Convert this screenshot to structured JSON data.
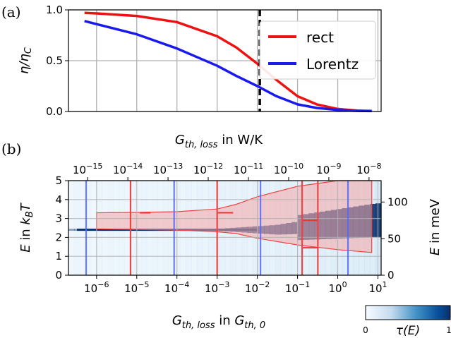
{
  "chart_data": [
    {
      "panel_label": "(a)",
      "type": "line",
      "ylabel": "η/η_C",
      "yticks": [
        "0.0",
        "0.5",
        "1.0"
      ],
      "ylim": [
        0,
        1
      ],
      "x_scale": "log",
      "x_unit": "G_th,loss in G_th,0",
      "xlim": [
        2e-07,
        12
      ],
      "grid": true,
      "legend": "top-right",
      "vline": {
        "x": 0.0115,
        "style": "dashed",
        "color": "#000000"
      },
      "series": [
        {
          "name": "rect",
          "color": "#ee1111",
          "x": [
            5e-07,
            1e-06,
            1e-05,
            0.0001,
            0.001,
            0.003,
            0.01,
            0.03,
            0.1,
            0.3,
            1,
            3,
            7
          ],
          "y": [
            0.97,
            0.965,
            0.94,
            0.88,
            0.74,
            0.63,
            0.47,
            0.31,
            0.15,
            0.07,
            0.025,
            0.008,
            0.005
          ]
        },
        {
          "name": "Lorentz",
          "color": "#1a1aee",
          "x": [
            5e-07,
            1e-06,
            1e-05,
            0.0001,
            0.001,
            0.003,
            0.01,
            0.03,
            0.1,
            0.3,
            1,
            3,
            7
          ],
          "y": [
            0.89,
            0.86,
            0.76,
            0.62,
            0.45,
            0.35,
            0.25,
            0.15,
            0.07,
            0.035,
            0.015,
            0.006,
            0.004
          ]
        }
      ]
    },
    {
      "panel_label": "(b)",
      "type": "heatmap",
      "xlabel": "G_th,loss in G_th,0",
      "x_top_label": "G_th,loss in W/K",
      "ylabel": "E in k_B T",
      "y_right_label": "E in meV",
      "x_scale": "log",
      "xlim": [
        2e-07,
        12
      ],
      "ylim": [
        0,
        5
      ],
      "xticks": [
        {
          "v": 1e-06,
          "e": "-6"
        },
        {
          "v": 1e-05,
          "e": "-5"
        },
        {
          "v": 0.0001,
          "e": "-4"
        },
        {
          "v": 0.001,
          "e": "-3"
        },
        {
          "v": 0.01,
          "e": "-2"
        },
        {
          "v": 0.1,
          "e": "-1"
        },
        {
          "v": 1,
          "e": "0"
        },
        {
          "v": 10,
          "e": "1"
        }
      ],
      "xticks_top": [
        {
          "v": 6e-07,
          "e": "-15"
        },
        {
          "v": 6e-06,
          "e": "-14"
        },
        {
          "v": 6e-05,
          "e": "-13"
        },
        {
          "v": 0.0006,
          "e": "-12"
        },
        {
          "v": 0.006,
          "e": "-11"
        },
        {
          "v": 0.06,
          "e": "-10"
        },
        {
          "v": 0.6,
          "e": "-9"
        },
        {
          "v": 6,
          "e": "-8"
        }
      ],
      "yticks": [
        "0",
        "1",
        "2",
        "3",
        "4",
        "5"
      ],
      "yticks_right": [
        {
          "meV": 0,
          "E": 0
        },
        {
          "meV": 50,
          "E": 1.93
        },
        {
          "meV": 100,
          "E": 3.87
        }
      ],
      "grid": true,
      "colorbar": {
        "label": "τ(E)",
        "min": "0",
        "max": "1",
        "colormap": "Blues"
      },
      "rect_region": {
        "color": "#ee4444",
        "x": [
          1e-06,
          1e-05,
          0.0001,
          0.001,
          0.003,
          0.01,
          0.1,
          1,
          7
        ],
        "lower": [
          2.45,
          2.42,
          2.38,
          2.3,
          2.2,
          1.95,
          1.6,
          1.35,
          1.2
        ],
        "upper": [
          3.3,
          3.32,
          3.36,
          3.5,
          3.75,
          4.15,
          4.7,
          5.0,
          5.0
        ]
      },
      "rect_steps": [
        {
          "x_left": 1.2e-05,
          "x_right": 2.2e-05,
          "y": 3.3
        },
        {
          "x_left": 0.001,
          "x_right": 0.0025,
          "y": 3.3
        },
        {
          "x_left": 0.13,
          "x_right": 0.32,
          "y": 2.9
        },
        {
          "x_left": 0.13,
          "x_right": 0.32,
          "y": 1.45
        }
      ],
      "vlines_rect": [
        7e-06,
        0.001,
        0.13,
        0.32
      ],
      "vlines_lorentz": [
        5.5e-07,
        8.5e-05,
        0.012,
        1.8
      ]
    }
  ]
}
